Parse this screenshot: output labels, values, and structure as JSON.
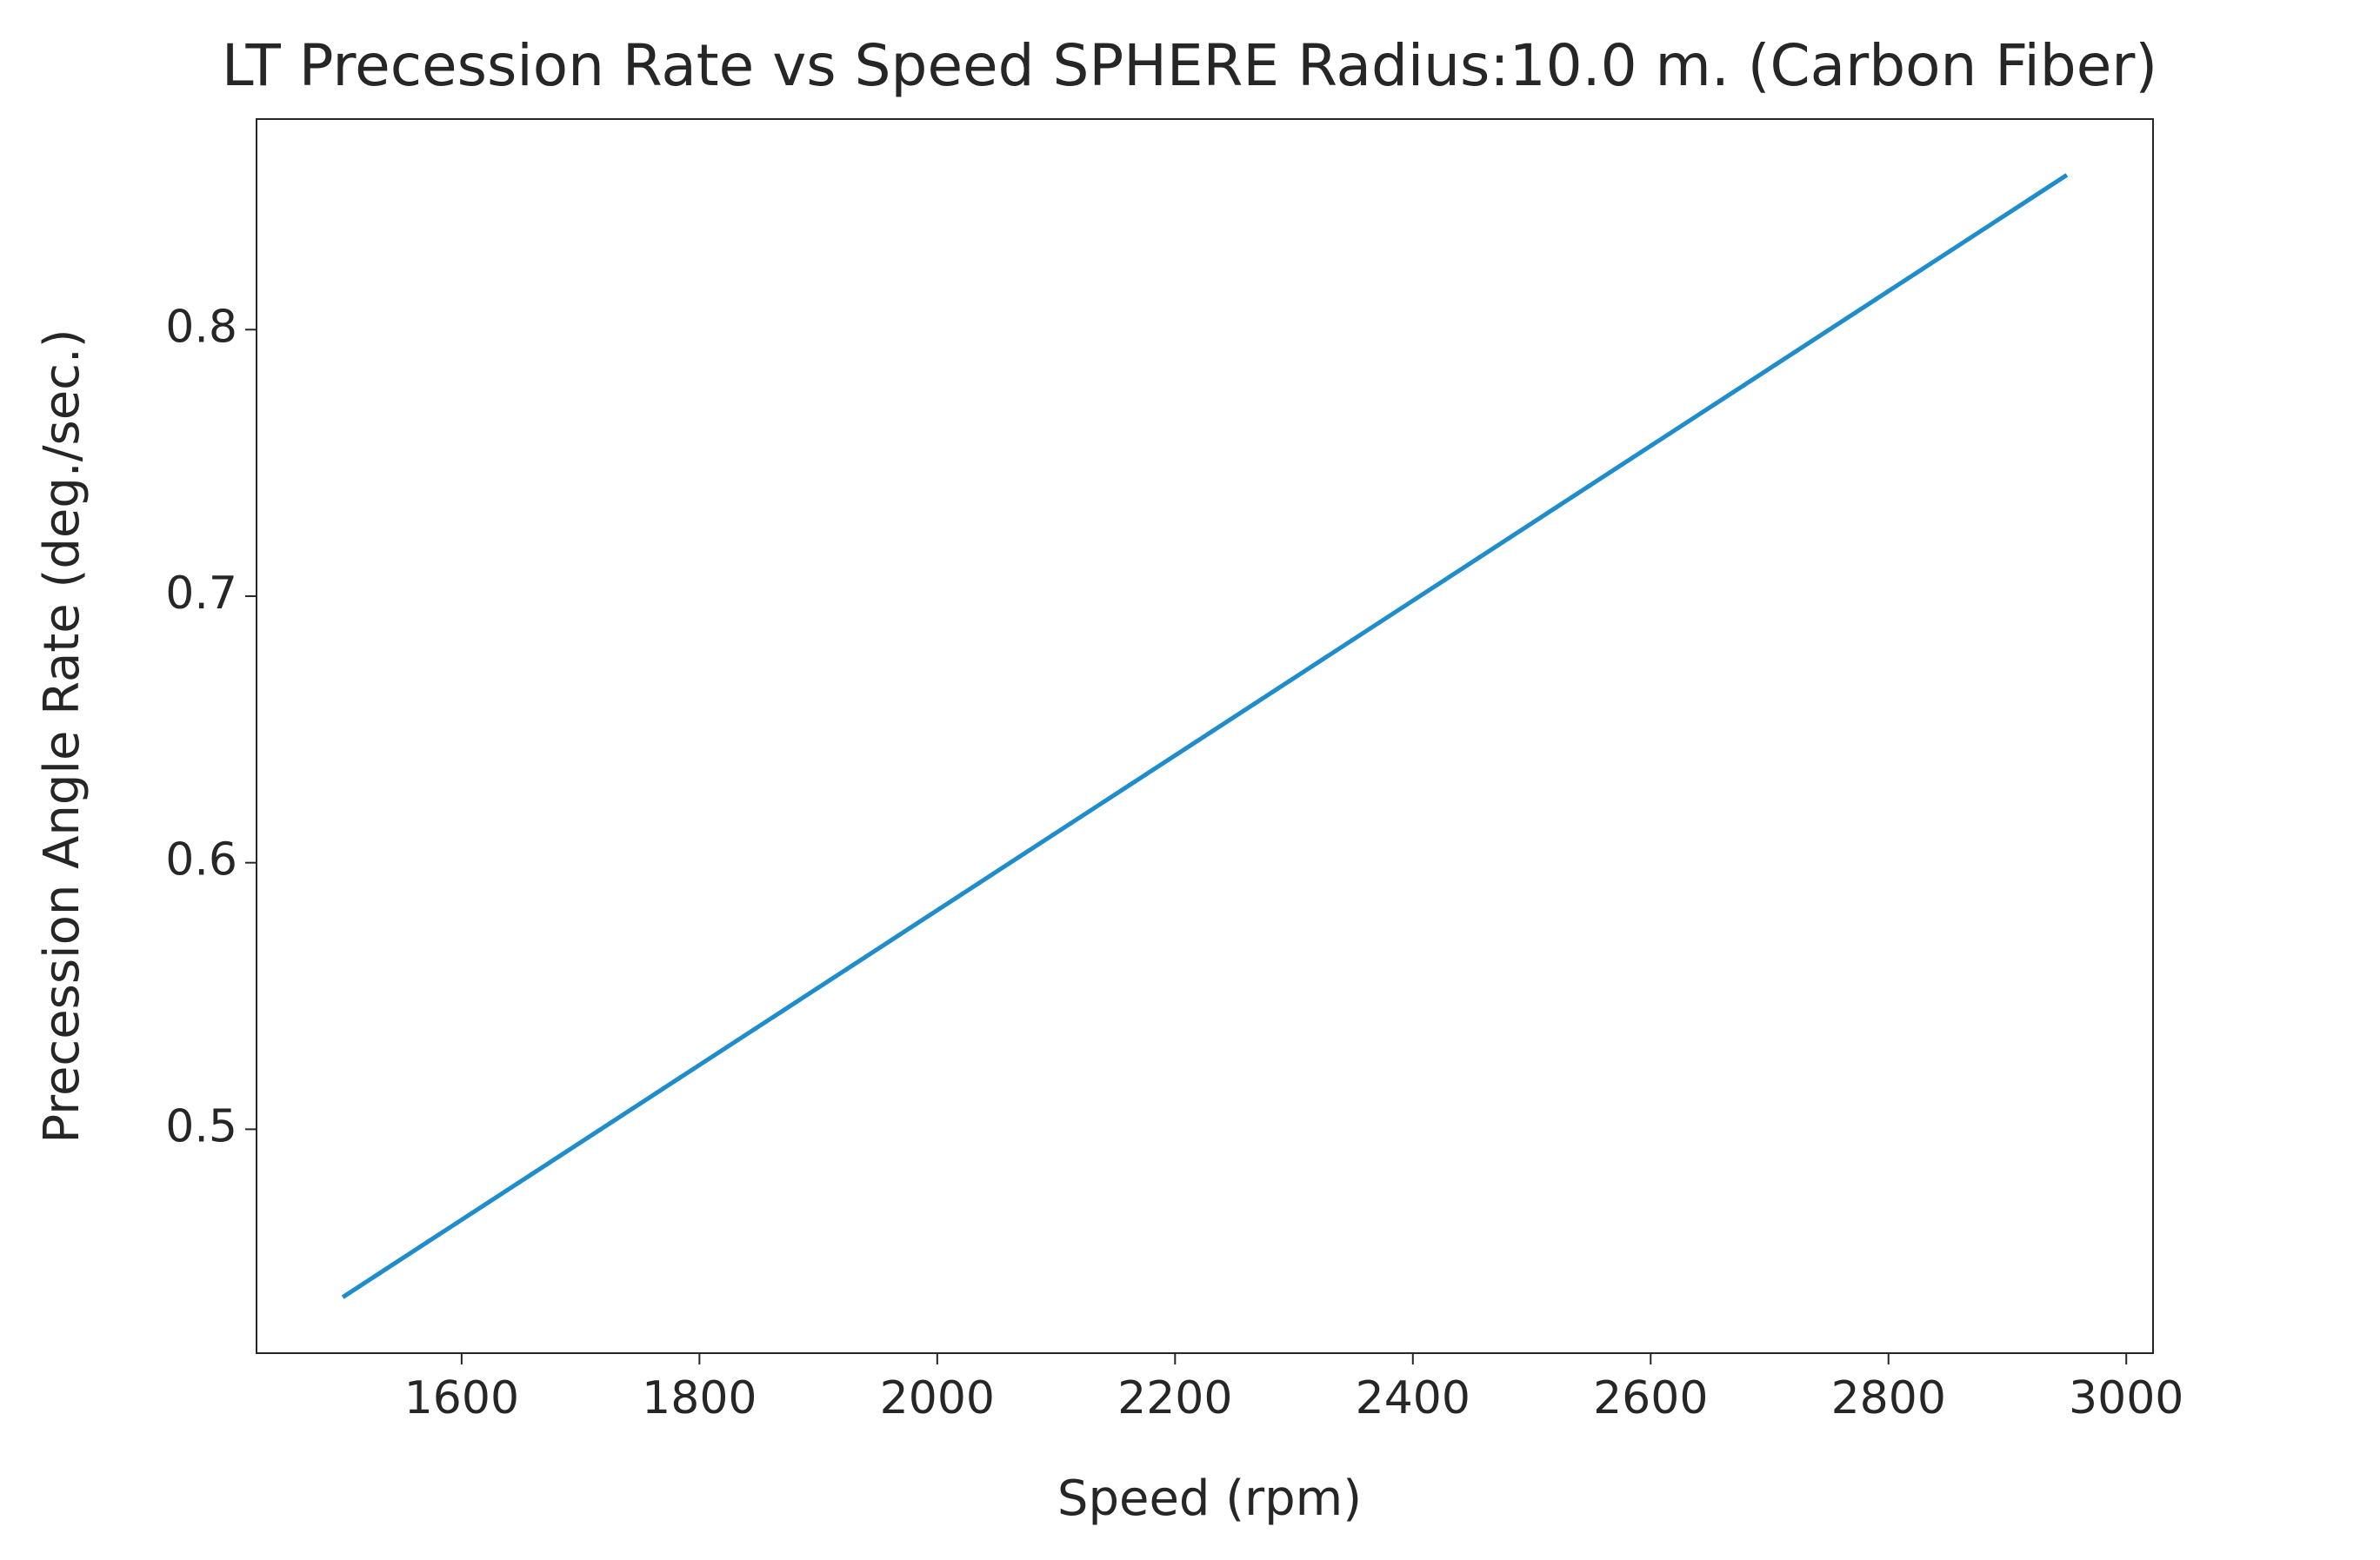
{
  "chart_data": {
    "type": "line",
    "title": "LT Precession Rate vs Speed SPHERE Radius:10.0 m. (Carbon Fiber)",
    "x_label": "Speed (rpm)",
    "y_label": "Precession Angle Rate (deg./sec.)",
    "x": [
      1500,
      2950
    ],
    "series": [
      {
        "name": "Precession Angle Rate",
        "color": "#1f8dcc",
        "values": [
          0.437,
          0.858
        ]
      }
    ],
    "xlim": [
      1427.5,
      3022.5
    ],
    "ylim": [
      0.416,
      0.879
    ],
    "xticks": [
      1600,
      1800,
      2000,
      2200,
      2400,
      2600,
      2800,
      3000
    ],
    "yticks": [
      0.5,
      0.6,
      0.7,
      0.8
    ]
  }
}
